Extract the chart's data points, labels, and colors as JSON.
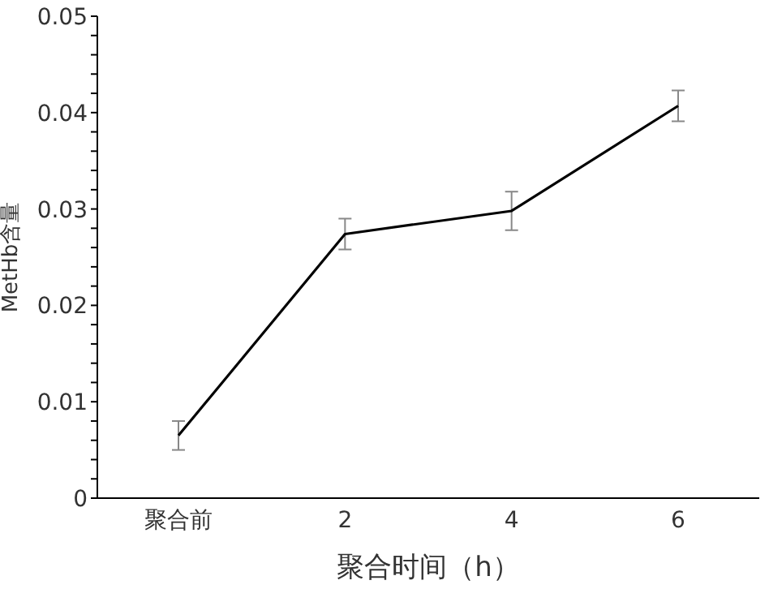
{
  "chart_data": {
    "type": "line",
    "xlabel": "聚合时间（h）",
    "ylabel": "MetHb含量",
    "categories": [
      "聚合前",
      "2",
      "4",
      "6"
    ],
    "series": [
      {
        "color": "#000000",
        "values": [
          0.0065,
          0.0274,
          0.0298,
          0.0407
        ],
        "errors": [
          0.0015,
          0.0016,
          0.002,
          0.0016
        ]
      }
    ],
    "ylim": [
      0,
      0.05
    ],
    "yticks": [
      0,
      {
        "value": 0.002,
        "label": null
      },
      {
        "value": 0.004,
        "label": null
      },
      {
        "value": 0.006,
        "label": null
      },
      {
        "value": 0.008,
        "label": null
      },
      0.01,
      {
        "value": 0.012,
        "label": null
      },
      {
        "value": 0.014,
        "label": null
      },
      {
        "value": 0.016,
        "label": null
      },
      {
        "value": 0.018,
        "label": null
      },
      0.02,
      {
        "value": 0.022,
        "label": null
      },
      {
        "value": 0.024,
        "label": null
      },
      {
        "value": 0.026,
        "label": null
      },
      {
        "value": 0.028,
        "label": null
      },
      0.03,
      {
        "value": 0.032,
        "label": null
      },
      {
        "value": 0.034,
        "label": null
      },
      {
        "value": 0.036,
        "label": null
      },
      {
        "value": 0.038,
        "label": null
      },
      0.04,
      {
        "value": 0.042,
        "label": null
      },
      {
        "value": 0.044,
        "label": null
      },
      {
        "value": 0.046,
        "label": null
      },
      {
        "value": 0.048,
        "label": null
      },
      0.05
    ],
    "grid": false,
    "legend": false,
    "marker": "none",
    "line_style": "solid"
  }
}
